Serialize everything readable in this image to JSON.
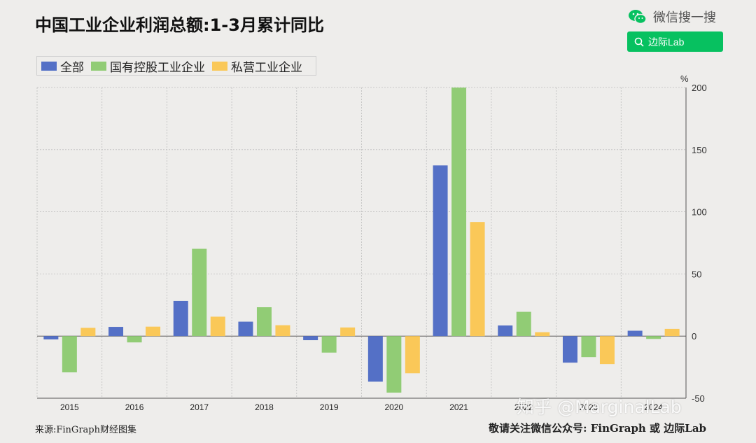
{
  "header": {
    "title": "中国工业企业利润总额:1-3月累计同比",
    "wechat_label": "微信搜一搜",
    "search_label": "边际Lab"
  },
  "footer": {
    "source": "来源:FinGraph财经图集",
    "follow": "敬请关注微信公众号:  FinGraph  或  边际Lab"
  },
  "watermark": "知乎 @MarginalLab",
  "colors": {
    "background": "#eeedeb",
    "series": [
      "#5470c6",
      "#91cc75",
      "#fac858"
    ],
    "wechat_green": "#07c160"
  },
  "chart_data": {
    "type": "bar",
    "title": "中国工业企业利润总额:1-3月累计同比",
    "ylabel": "%",
    "ylim": [
      -50,
      200
    ],
    "yticks": [
      -50,
      0,
      50,
      100,
      150,
      200
    ],
    "grid": true,
    "legend_position": "top-left",
    "y_axis_side": "right",
    "categories": [
      "2015",
      "2016",
      "2017",
      "2018",
      "2019",
      "2020",
      "2021",
      "2022",
      "2023",
      "2024"
    ],
    "series": [
      {
        "name": "全部",
        "values": [
          -2.7,
          7.4,
          28.3,
          11.6,
          -3.3,
          -36.7,
          137.3,
          8.5,
          -21.4,
          4.3
        ]
      },
      {
        "name": "国有控股工业企业",
        "values": [
          -29.2,
          -5.1,
          70.2,
          23.2,
          -13.3,
          -45.5,
          199.9,
          19.5,
          -16.9,
          -2.3
        ]
      },
      {
        "name": "私营工业企业",
        "values": [
          6.6,
          7.6,
          15.6,
          8.7,
          6.9,
          -29.9,
          91.8,
          3.1,
          -22.5,
          5.8
        ]
      }
    ]
  },
  "legend": {
    "items": [
      {
        "label": "全部"
      },
      {
        "label": "国有控股工业企业"
      },
      {
        "label": "私营工业企业"
      }
    ]
  }
}
